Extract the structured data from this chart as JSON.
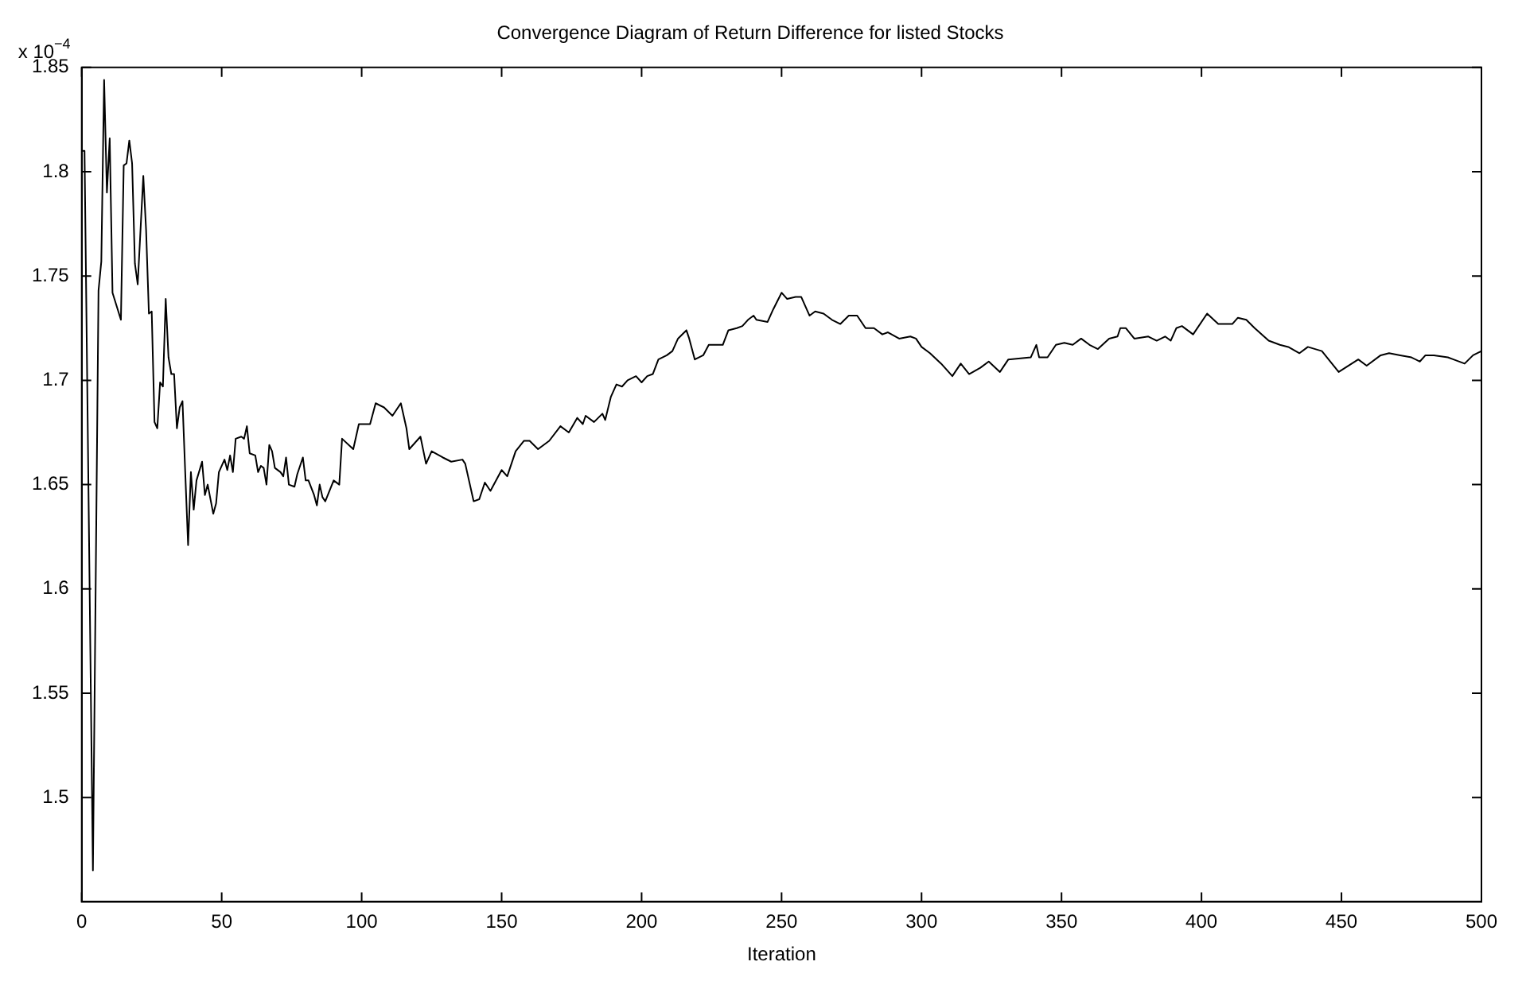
{
  "chart_data": {
    "type": "line",
    "title": "Convergence Diagram of Return Difference for listed Stocks",
    "xlabel": "Iteration",
    "annotations": [
      "x 10$^{−4}$"
    ],
    "x": [
      0,
      1,
      4,
      6,
      7,
      8,
      9,
      10,
      11,
      14,
      15,
      16,
      17,
      18,
      19,
      20,
      22,
      23,
      24,
      25,
      26,
      27,
      28,
      29,
      30,
      31,
      32,
      33,
      34,
      35,
      36,
      37,
      38,
      39,
      40,
      41,
      43,
      44,
      45,
      47,
      48,
      49,
      51,
      52,
      53,
      54,
      55,
      57,
      58,
      59,
      60,
      62,
      63,
      64,
      65,
      66,
      67,
      68,
      69,
      71,
      72,
      73,
      74,
      76,
      77,
      79,
      80,
      81,
      83,
      84,
      85,
      86,
      87,
      90,
      92,
      93,
      97,
      99,
      103,
      105,
      108,
      111,
      114,
      116,
      117,
      121,
      123,
      125,
      129,
      132,
      136,
      137,
      140,
      142,
      144,
      146,
      150,
      152,
      155,
      158,
      160,
      163,
      167,
      171,
      174,
      177,
      179,
      180,
      183,
      186,
      187,
      189,
      191,
      193,
      195,
      198,
      200,
      202,
      204,
      206,
      209,
      211,
      213,
      216,
      217,
      219,
      222,
      224,
      229,
      231,
      234,
      236,
      238,
      240,
      241,
      245,
      247,
      250,
      252,
      255,
      257,
      260,
      262,
      265,
      268,
      271,
      274,
      277,
      280,
      283,
      286,
      288,
      292,
      296,
      298,
      300,
      303,
      307,
      311,
      314,
      317,
      321,
      324,
      328,
      331,
      339,
      341,
      342,
      345,
      348,
      351,
      354,
      357,
      360,
      363,
      367,
      370,
      371,
      373,
      376,
      381,
      384,
      387,
      389,
      391,
      393,
      397,
      402,
      406,
      411,
      413,
      416,
      419,
      424,
      428,
      431,
      435,
      438,
      443,
      449,
      456,
      459,
      464,
      467,
      471,
      475,
      478,
      480,
      483,
      488,
      490,
      494,
      497,
      500
    ],
    "values": [
      1.81,
      1.81,
      1.465,
      1.743,
      1.757,
      1.844,
      1.79,
      1.816,
      1.742,
      1.729,
      1.803,
      1.804,
      1.815,
      1.804,
      1.756,
      1.746,
      1.798,
      1.772,
      1.732,
      1.733,
      1.68,
      1.677,
      1.699,
      1.697,
      1.739,
      1.711,
      1.703,
      1.703,
      1.677,
      1.687,
      1.69,
      1.655,
      1.621,
      1.656,
      1.638,
      1.652,
      1.661,
      1.645,
      1.65,
      1.636,
      1.641,
      1.656,
      1.662,
      1.657,
      1.664,
      1.656,
      1.672,
      1.673,
      1.672,
      1.678,
      1.665,
      1.664,
      1.656,
      1.659,
      1.658,
      1.65,
      1.669,
      1.666,
      1.658,
      1.656,
      1.654,
      1.663,
      1.65,
      1.649,
      1.655,
      1.663,
      1.652,
      1.652,
      1.645,
      1.64,
      1.65,
      1.644,
      1.642,
      1.652,
      1.65,
      1.672,
      1.667,
      1.679,
      1.679,
      1.689,
      1.687,
      1.683,
      1.689,
      1.677,
      1.667,
      1.673,
      1.66,
      1.666,
      1.663,
      1.661,
      1.662,
      1.66,
      1.642,
      1.643,
      1.651,
      1.647,
      1.657,
      1.654,
      1.666,
      1.671,
      1.671,
      1.667,
      1.671,
      1.678,
      1.675,
      1.682,
      1.679,
      1.683,
      1.68,
      1.684,
      1.681,
      1.692,
      1.698,
      1.697,
      1.7,
      1.702,
      1.699,
      1.702,
      1.703,
      1.71,
      1.712,
      1.714,
      1.72,
      1.724,
      1.72,
      1.71,
      1.712,
      1.717,
      1.717,
      1.724,
      1.725,
      1.726,
      1.729,
      1.731,
      1.729,
      1.728,
      1.734,
      1.742,
      1.739,
      1.74,
      1.74,
      1.731,
      1.733,
      1.732,
      1.729,
      1.727,
      1.731,
      1.731,
      1.725,
      1.725,
      1.722,
      1.723,
      1.72,
      1.721,
      1.72,
      1.716,
      1.713,
      1.708,
      1.702,
      1.708,
      1.703,
      1.706,
      1.709,
      1.704,
      1.71,
      1.711,
      1.717,
      1.711,
      1.711,
      1.717,
      1.718,
      1.717,
      1.72,
      1.717,
      1.715,
      1.72,
      1.721,
      1.725,
      1.725,
      1.72,
      1.721,
      1.719,
      1.721,
      1.719,
      1.725,
      1.726,
      1.722,
      1.732,
      1.727,
      1.727,
      1.73,
      1.729,
      1.725,
      1.719,
      1.717,
      1.716,
      1.713,
      1.716,
      1.714,
      1.704,
      1.71,
      1.707,
      1.712,
      1.713,
      1.712,
      1.711,
      1.709,
      1.712,
      1.712,
      1.711,
      1.71,
      1.708,
      1.712,
      1.714
    ],
    "color": "#000000",
    "xlim": [
      0,
      500
    ],
    "xticks": [
      0,
      50,
      100,
      150,
      200,
      250,
      300,
      350,
      400,
      450,
      500
    ],
    "ylim": [
      1.45,
      1.85
    ],
    "yticks": [
      1.5,
      1.55,
      1.6,
      1.65,
      1.7,
      1.75,
      1.8,
      1.85
    ],
    "grid": false,
    "legend": false,
    "marker": "none",
    "line_style": "solid"
  }
}
